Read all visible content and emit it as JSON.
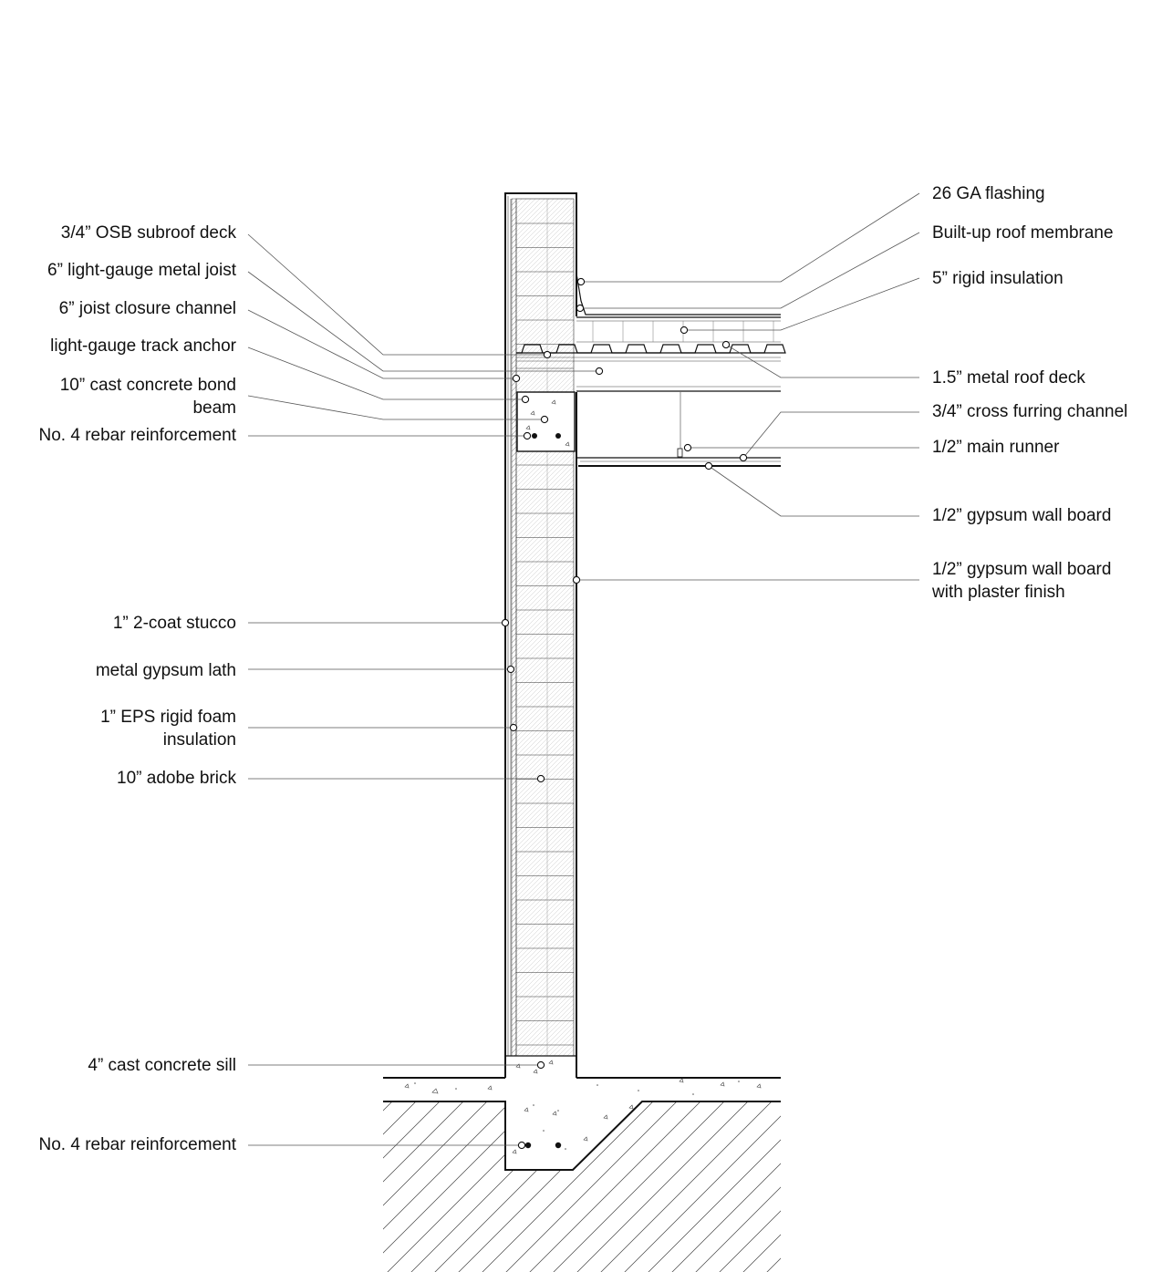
{
  "labels_left": [
    {
      "id": "osb-subroof-deck",
      "lines": [
        "3/4” OSB subroof deck"
      ]
    },
    {
      "id": "metal-joist",
      "lines": [
        "6” light-gauge metal joist"
      ]
    },
    {
      "id": "joist-closure-channel",
      "lines": [
        "6” joist closure channel"
      ]
    },
    {
      "id": "track-anchor",
      "lines": [
        "light-gauge track anchor"
      ]
    },
    {
      "id": "bond-beam",
      "lines": [
        "10” cast concrete bond",
        "beam"
      ]
    },
    {
      "id": "rebar-upper",
      "lines": [
        "No. 4 rebar reinforcement"
      ]
    },
    {
      "id": "stucco",
      "lines": [
        "1” 2-coat stucco"
      ]
    },
    {
      "id": "gypsum-lath",
      "lines": [
        "metal gypsum lath"
      ]
    },
    {
      "id": "eps-insulation",
      "lines": [
        "1” EPS rigid foam",
        "insulation"
      ]
    },
    {
      "id": "adobe-brick",
      "lines": [
        "10” adobe brick"
      ]
    },
    {
      "id": "concrete-sill",
      "lines": [
        "4” cast concrete sill"
      ]
    },
    {
      "id": "rebar-lower",
      "lines": [
        "No. 4 rebar reinforcement"
      ]
    }
  ],
  "labels_right": [
    {
      "id": "flashing",
      "lines": [
        "26 GA flashing"
      ]
    },
    {
      "id": "roof-membrane",
      "lines": [
        "Built-up roof membrane"
      ]
    },
    {
      "id": "rigid-insulation",
      "lines": [
        "5” rigid insulation"
      ]
    },
    {
      "id": "metal-roof-deck",
      "lines": [
        "1.5” metal roof deck"
      ]
    },
    {
      "id": "furring-channel",
      "lines": [
        "3/4” cross furring channel"
      ]
    },
    {
      "id": "main-runner",
      "lines": [
        "1/2” main runner"
      ]
    },
    {
      "id": "gypsum-board",
      "lines": [
        "1/2” gypsum wall board"
      ]
    },
    {
      "id": "gypsum-board-plaster",
      "lines": [
        "1/2” gypsum wall board",
        "with plaster finish"
      ]
    }
  ]
}
